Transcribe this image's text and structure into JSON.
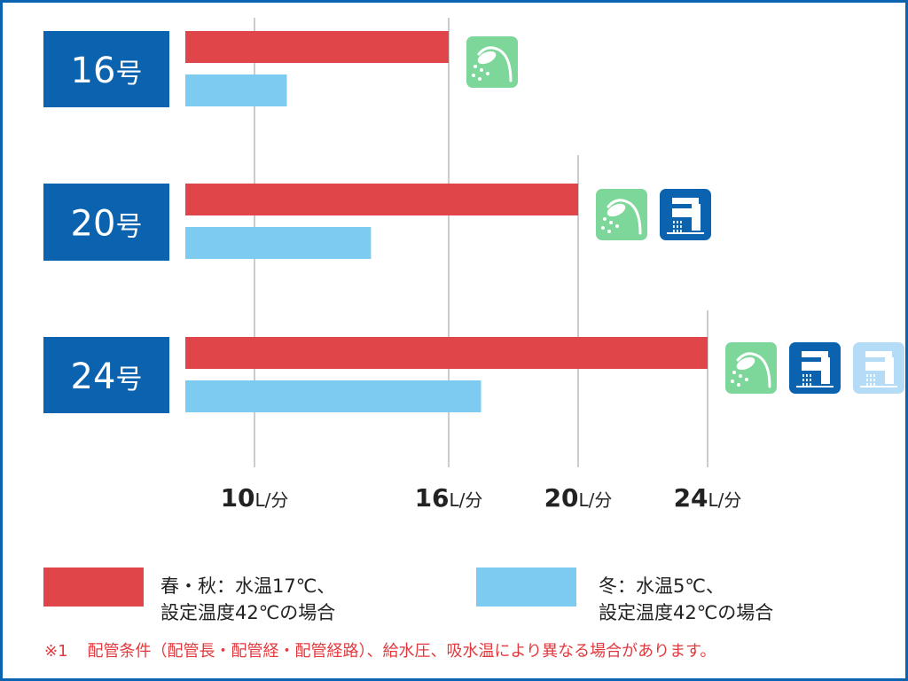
{
  "chart_data": {
    "type": "bar",
    "orientation": "horizontal",
    "categories": [
      "16号",
      "20号",
      "24号"
    ],
    "series": [
      {
        "name": "春・秋：水温17℃、設定温度42℃の場合",
        "values": [
          16,
          20,
          24
        ]
      },
      {
        "name": "冬：水温5℃、設定温度42℃の場合",
        "values": [
          11,
          13.6,
          17
        ]
      }
    ],
    "xticks": [
      {
        "value": 10,
        "num": "10",
        "unit": "L/分"
      },
      {
        "value": 16,
        "num": "16",
        "unit": "L/分"
      },
      {
        "value": 20,
        "num": "20",
        "unit": "L/分"
      },
      {
        "value": 24,
        "num": "24",
        "unit": "L/分"
      }
    ],
    "xlim": [
      7.8,
      33
    ],
    "grid": true,
    "legend_position": "bottom",
    "category_icons": [
      [
        "shower-icon"
      ],
      [
        "shower-icon",
        "faucet-icon"
      ],
      [
        "shower-icon",
        "faucet-icon",
        "faucet-light-icon"
      ]
    ]
  },
  "legend": {
    "spring_line1": "春・秋：水温17℃、",
    "spring_line2": "設定温度42℃の場合",
    "winter_line1": "冬：水温5℃、",
    "winter_line2": "設定温度42℃の場合"
  },
  "footnote": {
    "mark": "※1",
    "text": "配管条件（配管長・配管経・配管経路）、給水圧、吸水温により異なる場合があります。"
  },
  "colors": {
    "spring": "#e0454a",
    "winter": "#7dcbf1",
    "label_bg": "#0b63b0",
    "grid": "#9a9a9a",
    "shower_bg": "#7ed79a",
    "faucet_bg": "#0b63b0",
    "faucet_light_bg": "#b4dcf6",
    "border": "#0b63b0"
  }
}
